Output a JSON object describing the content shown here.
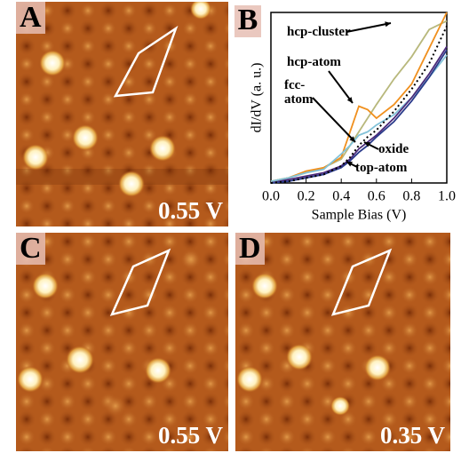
{
  "panels": [
    {
      "label": "A",
      "bias": "0.55 V"
    },
    {
      "label": "C",
      "bias": "0.55 V"
    },
    {
      "label": "D",
      "bias": "0.35 V"
    }
  ],
  "chart_label": "B",
  "chart_data": {
    "type": "line",
    "xlabel": "Sample Bias (V)",
    "ylabel": "dI/dV (a. u.)",
    "x": [
      0,
      0.1,
      0.2,
      0.3,
      0.4,
      0.45,
      0.5,
      0.55,
      0.6,
      0.7,
      0.8,
      0.9,
      1.0
    ],
    "series": [
      {
        "name": "hcp-cluster",
        "color": "#b8b87c",
        "values": [
          1,
          3,
          6,
          9,
          14,
          22,
          30,
          38,
          46,
          61,
          74,
          90,
          95
        ]
      },
      {
        "name": "hcp-atom",
        "color": "#f0901e",
        "values": [
          1,
          3,
          7,
          9,
          15,
          30,
          45,
          43,
          38,
          46,
          58,
          79,
          100
        ]
      },
      {
        "name": "fcc-atom",
        "color": "#82c2d8",
        "values": [
          1,
          3,
          6,
          8,
          17,
          22,
          28,
          30,
          34,
          40,
          50,
          62,
          75
        ]
      },
      {
        "name": "oxide",
        "color": "#4b2a7a",
        "values": [
          0,
          2,
          4,
          6,
          10,
          14,
          20,
          24,
          28,
          38,
          50,
          64,
          80
        ]
      },
      {
        "name": "top-atom",
        "color": "#2a3a8a",
        "values": [
          0,
          1,
          3,
          5,
          9,
          13,
          18,
          22,
          27,
          36,
          48,
          62,
          78
        ]
      },
      {
        "color": "#000000",
        "dash": true,
        "values": [
          0,
          1,
          3,
          5,
          10,
          15,
          22,
          27,
          31,
          42,
          55,
          70,
          92
        ]
      }
    ],
    "xlim": [
      0,
      1
    ],
    "ylim": [
      0,
      100
    ],
    "xticks": [
      {
        "value": 0,
        "label": "0.0"
      },
      {
        "value": 0.2,
        "label": "0.2"
      },
      {
        "value": 0.4,
        "label": "0.4"
      },
      {
        "value": 0.6,
        "label": "0.6"
      },
      {
        "value": 0.8,
        "label": "0.8"
      },
      {
        "value": 1,
        "label": "1.0"
      }
    ],
    "grid": false
  }
}
